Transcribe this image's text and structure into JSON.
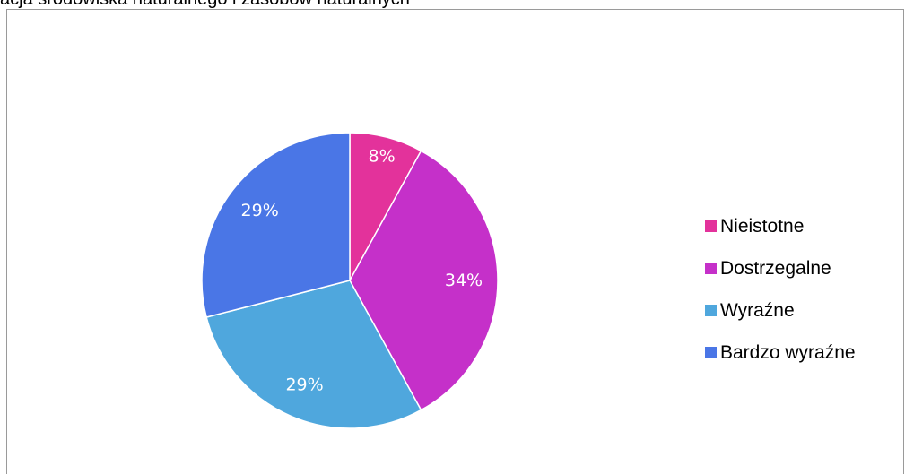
{
  "chart_data": {
    "type": "pie",
    "title": "acja środowiska naturalnego i zasobów naturalnych",
    "categories": [
      "Nieistotne",
      "Dostrzegalne",
      "Wyraźne",
      "Bardzo wyraźne"
    ],
    "values": [
      8,
      34,
      29,
      29
    ],
    "labels": [
      "8%",
      "34%",
      "29%",
      "29%"
    ],
    "colors": [
      "#e3329b",
      "#c530c9",
      "#4fa7dd",
      "#4a76e6"
    ],
    "legend_position": "right"
  }
}
